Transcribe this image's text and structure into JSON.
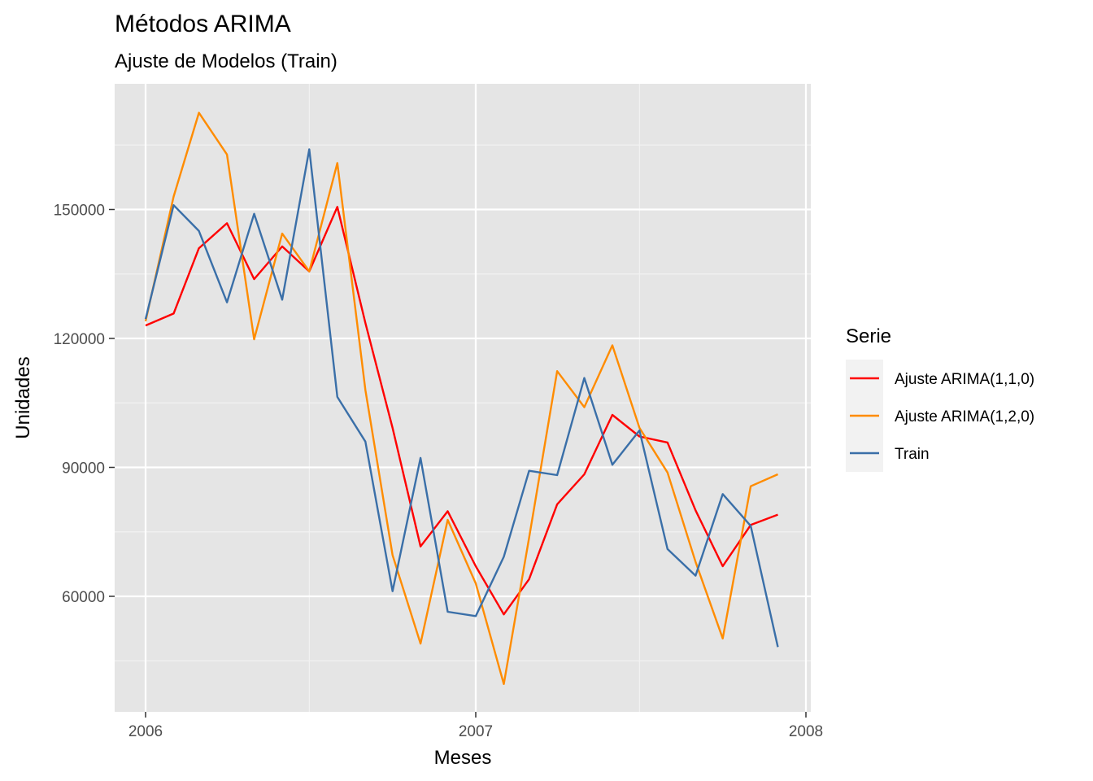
{
  "chart_data": {
    "type": "line",
    "title": "Métodos ARIMA",
    "subtitle": "Ajuste de Modelos (Train)",
    "xlabel": "Meses",
    "ylabel": "Unidades",
    "x_ticks": [
      "2006",
      "2007",
      "2008"
    ],
    "y_ticks": [
      "60000",
      "90000",
      "120000",
      "150000"
    ],
    "ylim": [
      40000,
      172500
    ],
    "xlim": [
      "2005-12-05",
      "2008-01-01"
    ],
    "grid": true,
    "legend": {
      "title": "Serie",
      "position": "right",
      "entries": [
        "Ajuste ARIMA(1,1,0)",
        "Ajuste ARIMA(1,2,0)",
        "Train"
      ]
    },
    "x": [
      "2006-01",
      "2006-02",
      "2006-03",
      "2006-04",
      "2006-05",
      "2006-06",
      "2006-07",
      "2006-08",
      "2006-09",
      "2006-10",
      "2006-11",
      "2006-12",
      "2007-01",
      "2007-02",
      "2007-03",
      "2007-04",
      "2007-05",
      "2007-06",
      "2007-07",
      "2007-08",
      "2007-09",
      "2007-10",
      "2007-11",
      "2007-12"
    ],
    "series": [
      {
        "name": "Ajuste ARIMA(1,1,0)",
        "color": "#ff0000",
        "values": [
          123000,
          125800,
          141000,
          146800,
          133800,
          141400,
          135600,
          150600,
          123600,
          99200,
          71600,
          79800,
          67000,
          55800,
          64000,
          81400,
          88400,
          102200,
          97200,
          95800,
          80000,
          67000,
          76600,
          79000
        ]
      },
      {
        "name": "Ajuste ARIMA(1,2,0)",
        "color": "#ff8c00",
        "values": [
          124000,
          153000,
          172500,
          162800,
          119800,
          144400,
          135600,
          160800,
          108000,
          69600,
          49000,
          77800,
          63000,
          39600,
          73600,
          112400,
          104000,
          118400,
          99200,
          88800,
          68000,
          50200,
          85600,
          88400
        ]
      },
      {
        "name": "Train",
        "color": "#3a6fa8",
        "values": [
          124500,
          151000,
          145000,
          128400,
          149000,
          129000,
          164000,
          106400,
          96000,
          61200,
          92200,
          56400,
          55400,
          69200,
          89200,
          88200,
          110800,
          90600,
          98600,
          71000,
          64800,
          83800,
          76400,
          48200
        ]
      }
    ]
  }
}
